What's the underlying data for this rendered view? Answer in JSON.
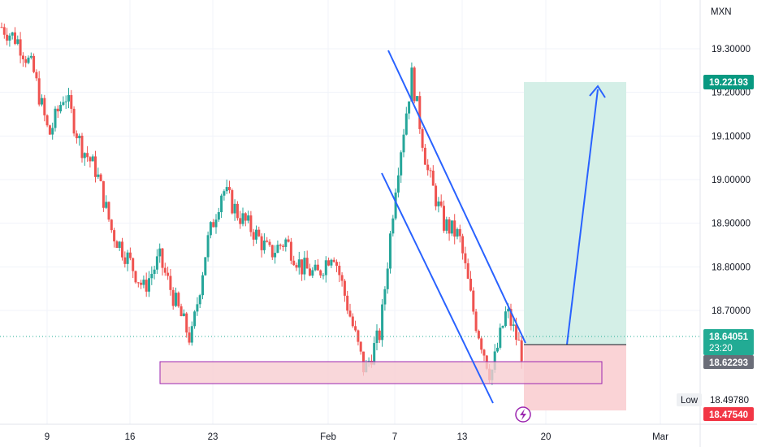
{
  "chart_data": {
    "type": "candlestick",
    "currency": "MXN",
    "y_ticks": [
      "19.30000",
      "19.20000",
      "19.10000",
      "19.00000",
      "18.90000",
      "18.80000",
      "18.70000"
    ],
    "y_tick_values": [
      19.3,
      19.2,
      19.1,
      19.0,
      18.9,
      18.8,
      18.7
    ],
    "ylim": [
      18.455,
      19.385
    ],
    "x_ticks": [
      "9",
      "16",
      "23",
      "Feb",
      "7",
      "13",
      "20",
      "Mar"
    ],
    "series": {
      "up_color": "#26a69a",
      "down_color": "#ef5350",
      "path_points": [
        [
          19.35,
          19.3
        ],
        [
          19.32,
          19.2
        ],
        [
          19.25,
          19.35
        ],
        [
          19.1,
          19.12
        ],
        [
          19.2,
          19.15
        ],
        [
          19.08,
          18.95
        ],
        [
          19.02,
          18.88
        ],
        [
          18.88,
          18.85
        ],
        [
          18.82,
          18.9
        ],
        [
          18.75,
          18.72
        ],
        [
          18.82,
          18.8
        ],
        [
          18.72,
          18.65
        ],
        [
          18.63,
          18.57
        ],
        [
          18.85,
          19.02
        ],
        [
          18.98,
          19.06
        ],
        [
          18.92,
          18.85
        ],
        [
          18.88,
          18.83
        ],
        [
          18.83,
          18.82
        ],
        [
          18.86,
          18.83
        ],
        [
          18.8,
          18.78
        ],
        [
          18.78,
          18.76
        ],
        [
          18.84,
          18.85
        ],
        [
          18.7,
          18.75
        ],
        [
          18.56,
          18.53
        ],
        [
          18.65,
          18.7
        ],
        [
          19.0,
          19.18
        ],
        [
          19.24,
          19.1
        ],
        [
          19.02,
          18.87
        ],
        [
          18.9,
          18.94
        ],
        [
          18.87,
          18.74
        ],
        [
          18.68,
          18.64
        ],
        [
          18.55,
          18.62
        ],
        [
          18.7,
          18.66
        ],
        [
          18.6,
          18.64
        ]
      ]
    },
    "last_price": "18.64051",
    "countdown": "23:20",
    "entry_price": "18.62293",
    "target_price": "19.22193",
    "stop_price": "18.47540",
    "low_label": "Low",
    "low_value": "18.49780",
    "annotations": {
      "falling_wedge_upper": [
        [
          19.3,
          0
        ],
        [
          18.64,
          1
        ]
      ],
      "falling_wedge_lower": [
        [
          19.02,
          0
        ],
        [
          18.5,
          1
        ]
      ],
      "support_zone": [
        18.57,
        18.62
      ],
      "projection_arrow_to": 19.2,
      "zone_fill": "#f8cdd1",
      "zone_border": "#9c27b0",
      "trend_line_color": "#2962ff",
      "profit_fill": "#d4efe7",
      "loss_fill": "#fad3d6"
    },
    "colors": {
      "last_price_tag": "#22ab94",
      "target_tag": "#089981",
      "entry_tag": "#6a6d78",
      "stop_tag": "#f23645",
      "flash_icon": "#9c27b0"
    }
  }
}
